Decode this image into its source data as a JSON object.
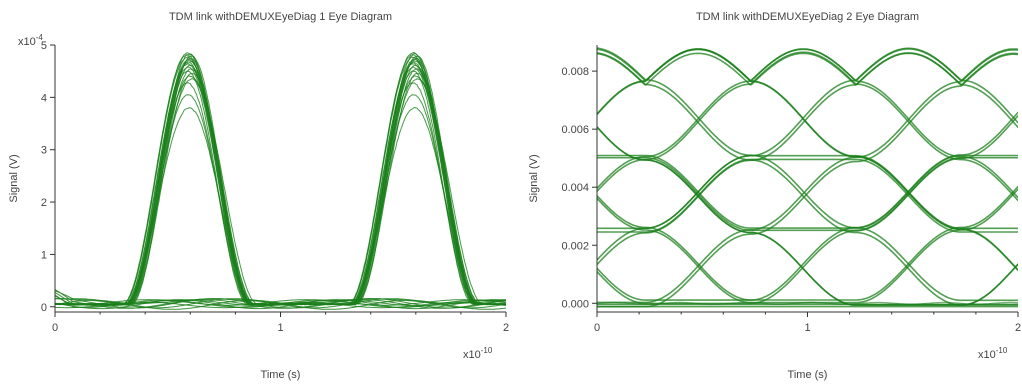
{
  "chart_data": [
    {
      "type": "line",
      "title": "TDM link withDEMUXEyeDiag 1 Eye Diagram",
      "xlabel": "Time (s)",
      "ylabel": "Signal (V)",
      "x_multiplier": "x10",
      "x_exponent": "-10",
      "y_multiplier": "x10",
      "y_exponent": "-4",
      "xlim": [
        0,
        2
      ],
      "ylim": [
        -0.1,
        5
      ],
      "xticks": [
        "0",
        "1",
        "2"
      ],
      "yticks": [
        "0",
        "1",
        "2",
        "3",
        "4",
        "5"
      ],
      "xtick_values": [
        0,
        1,
        2
      ],
      "ytick_values": [
        0,
        1,
        2,
        3,
        4,
        5
      ],
      "grid": false,
      "color": "#1a7f1a",
      "eye": {
        "kind": "rz_pulse",
        "period": 1.0,
        "pulse_centers": [
          0.6,
          1.6
        ],
        "pulse_width": 0.56,
        "peak_min": 3.75,
        "peak_max": 4.8,
        "baseline_max": 0.25,
        "traces": 20
      }
    },
    {
      "type": "line",
      "title": "TDM link withDEMUXEyeDiag 2 Eye Diagram",
      "xlabel": "Time (s)",
      "ylabel": "Signal (V)",
      "x_multiplier": "x10",
      "x_exponent": "-10",
      "xlim": [
        0,
        2
      ],
      "ylim": [
        -0.0003,
        0.0089
      ],
      "xticks": [
        "0",
        "1",
        "2"
      ],
      "yticks": [
        "0.000",
        "0.002",
        "0.004",
        "0.006",
        "0.008"
      ],
      "xtick_values": [
        0,
        1,
        2
      ],
      "ytick_values": [
        0,
        0.002,
        0.004,
        0.006,
        0.008
      ],
      "grid": false,
      "color": "#1a7f1a",
      "eye": {
        "kind": "multilevel",
        "levels": [
          0.0,
          0.0025,
          0.005,
          0.0076
        ],
        "envelope_peaks": [
          0.0087,
          0.0087,
          0.0087,
          0.0087
        ],
        "envelope_peak_x": [
          0.27,
          0.47,
          1.27,
          1.47
        ],
        "envelope_dips": [
          0.0075,
          0.0085,
          0.0079,
          0.0075,
          0.0085,
          0.0078
        ],
        "envelope_dip_x": [
          0.0,
          0.37,
          0.77,
          1.0,
          1.37,
          1.77
        ],
        "traces": 12
      }
    }
  ]
}
